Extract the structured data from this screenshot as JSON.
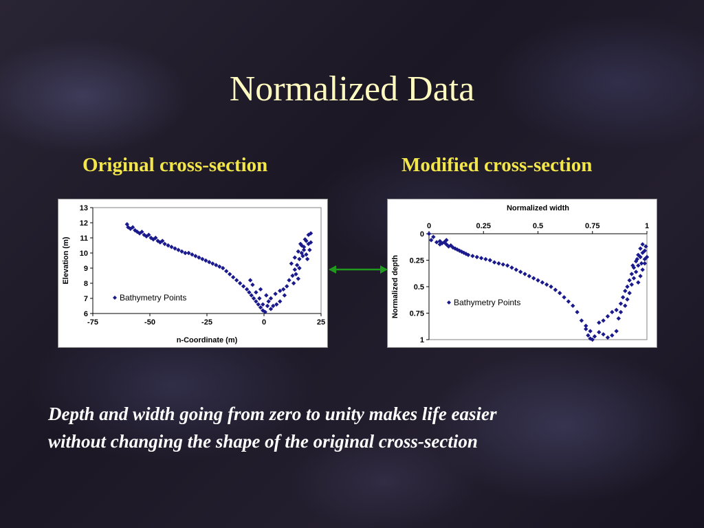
{
  "slide": {
    "title": "Normalized Data",
    "left_heading": "Original cross-section",
    "right_heading": "Modified cross-section",
    "caption_line1": "Depth and width going from zero to unity makes life easier",
    "caption_line2": "without changing the shape of the original cross-section"
  },
  "colors": {
    "point": "#1a1a8c",
    "arrow": "#1f9a1f",
    "heading": "#f2e64a",
    "title": "#fffbc0"
  },
  "chart_data": [
    {
      "type": "scatter",
      "xlabel": "n-Coordinate (m)",
      "ylabel": "Elevation (m)",
      "xlim": [
        -75,
        25
      ],
      "ylim": [
        6,
        13
      ],
      "xticks": [
        -75,
        -50,
        -25,
        0,
        25
      ],
      "yticks": [
        6,
        7,
        8,
        9,
        10,
        11,
        12,
        13
      ],
      "legend": "left-center",
      "grid": false,
      "series": [
        {
          "name": "Bathymetry Points",
          "points": [
            [
              -60,
              11.9
            ],
            [
              -59.5,
              11.7
            ],
            [
              -58.5,
              11.6
            ],
            [
              -57.5,
              11.7
            ],
            [
              -56.5,
              11.5
            ],
            [
              -55.5,
              11.4
            ],
            [
              -54.5,
              11.3
            ],
            [
              -53.5,
              11.4
            ],
            [
              -52.5,
              11.2
            ],
            [
              -51.5,
              11.1
            ],
            [
              -50.5,
              11.2
            ],
            [
              -49.5,
              11.0
            ],
            [
              -48.5,
              10.9
            ],
            [
              -47.5,
              11.0
            ],
            [
              -46.5,
              10.8
            ],
            [
              -45.5,
              10.7
            ],
            [
              -44.5,
              10.8
            ],
            [
              -43.5,
              10.6
            ],
            [
              -42,
              10.5
            ],
            [
              -40.5,
              10.4
            ],
            [
              -39,
              10.3
            ],
            [
              -37.5,
              10.2
            ],
            [
              -36,
              10.1
            ],
            [
              -34.5,
              10.0
            ],
            [
              -33,
              10.0
            ],
            [
              -31.5,
              9.9
            ],
            [
              -30,
              9.8
            ],
            [
              -28.5,
              9.7
            ],
            [
              -27,
              9.6
            ],
            [
              -25.5,
              9.5
            ],
            [
              -24,
              9.4
            ],
            [
              -22.5,
              9.3
            ],
            [
              -21,
              9.2
            ],
            [
              -19.5,
              9.1
            ],
            [
              -18,
              9.0
            ],
            [
              -16.5,
              8.8
            ],
            [
              -15,
              8.6
            ],
            [
              -13.5,
              8.4
            ],
            [
              -12,
              8.2
            ],
            [
              -10.5,
              8.0
            ],
            [
              -9,
              7.8
            ],
            [
              -7.5,
              7.6
            ],
            [
              -6.5,
              7.4
            ],
            [
              -5.5,
              7.2
            ],
            [
              -4.5,
              7.0
            ],
            [
              -3.5,
              6.8
            ],
            [
              -2.5,
              6.6
            ],
            [
              -1.5,
              6.4
            ],
            [
              -0.5,
              6.2
            ],
            [
              0.5,
              6.1
            ],
            [
              -6,
              8.2
            ],
            [
              -5,
              7.9
            ],
            [
              -3.5,
              7.4
            ],
            [
              -2,
              7.0
            ],
            [
              -0.5,
              6.6
            ],
            [
              1.5,
              6.5
            ],
            [
              3,
              6.3
            ],
            [
              4,
              6.5
            ],
            [
              5.5,
              6.6
            ],
            [
              3,
              7.0
            ],
            [
              5,
              7.3
            ],
            [
              7,
              7.5
            ],
            [
              8.5,
              7.6
            ],
            [
              10,
              7.8
            ],
            [
              11,
              8.2
            ],
            [
              12.5,
              8.5
            ],
            [
              13.5,
              8.9
            ],
            [
              14.5,
              9.2
            ],
            [
              15.5,
              9.6
            ],
            [
              16.5,
              10.0
            ],
            [
              17.5,
              10.4
            ],
            [
              18.5,
              10.8
            ],
            [
              19.5,
              11.2
            ],
            [
              20.5,
              11.3
            ],
            [
              12,
              9.3
            ],
            [
              13.5,
              9.7
            ],
            [
              15,
              10.1
            ],
            [
              16.5,
              10.5
            ],
            [
              18,
              10.9
            ],
            [
              19.5,
              10.6
            ],
            [
              20,
              10.2
            ],
            [
              17,
              9.8
            ],
            [
              15.5,
              9.0
            ],
            [
              14,
              8.6
            ],
            [
              18.5,
              9.9
            ],
            [
              20.5,
              10.7
            ],
            [
              16,
              10.6
            ],
            [
              17.5,
              10.2
            ],
            [
              19,
              9.6
            ],
            [
              15,
              8.3
            ],
            [
              13,
              8.0
            ],
            [
              9,
              7.2
            ],
            [
              7,
              6.8
            ],
            [
              2,
              6.8
            ],
            [
              1,
              7.2
            ],
            [
              -1.5,
              7.6
            ]
          ]
        }
      ]
    },
    {
      "type": "scatter",
      "xlabel": "Normalized width",
      "ylabel": "Normalized depth",
      "xlim": [
        0,
        1
      ],
      "ylim": [
        0,
        1
      ],
      "y_inverted": true,
      "x_axis_position": "top",
      "xticks": [
        0,
        0.25,
        0.5,
        0.75,
        1
      ],
      "yticks": [
        0,
        0.25,
        0.5,
        0.75,
        1
      ],
      "legend": "right-center",
      "grid": false,
      "series": [
        {
          "name": "Bathymetry Points",
          "points": [
            [
              0.0,
              0.0
            ],
            [
              0.01,
              0.06
            ],
            [
              0.02,
              0.03
            ],
            [
              0.035,
              0.08
            ],
            [
              0.05,
              0.07
            ],
            [
              0.06,
              0.09
            ],
            [
              0.07,
              0.08
            ],
            [
              0.08,
              0.1
            ],
            [
              0.09,
              0.12
            ],
            [
              0.1,
              0.11
            ],
            [
              0.11,
              0.13
            ],
            [
              0.12,
              0.14
            ],
            [
              0.13,
              0.15
            ],
            [
              0.14,
              0.16
            ],
            [
              0.15,
              0.17
            ],
            [
              0.16,
              0.18
            ],
            [
              0.17,
              0.19
            ],
            [
              0.18,
              0.2
            ],
            [
              0.2,
              0.21
            ],
            [
              0.22,
              0.22
            ],
            [
              0.24,
              0.23
            ],
            [
              0.26,
              0.24
            ],
            [
              0.28,
              0.25
            ],
            [
              0.3,
              0.27
            ],
            [
              0.32,
              0.28
            ],
            [
              0.34,
              0.29
            ],
            [
              0.36,
              0.3
            ],
            [
              0.38,
              0.32
            ],
            [
              0.4,
              0.34
            ],
            [
              0.42,
              0.36
            ],
            [
              0.44,
              0.38
            ],
            [
              0.46,
              0.4
            ],
            [
              0.48,
              0.42
            ],
            [
              0.5,
              0.44
            ],
            [
              0.52,
              0.46
            ],
            [
              0.54,
              0.48
            ],
            [
              0.56,
              0.5
            ],
            [
              0.58,
              0.53
            ],
            [
              0.6,
              0.56
            ],
            [
              0.62,
              0.6
            ],
            [
              0.64,
              0.64
            ],
            [
              0.66,
              0.68
            ],
            [
              0.68,
              0.74
            ],
            [
              0.7,
              0.82
            ],
            [
              0.72,
              0.9
            ],
            [
              0.73,
              0.96
            ],
            [
              0.74,
              0.99
            ],
            [
              0.75,
              1.0
            ],
            [
              0.72,
              0.87
            ],
            [
              0.74,
              0.92
            ],
            [
              0.76,
              0.97
            ],
            [
              0.78,
              0.93
            ],
            [
              0.8,
              0.95
            ],
            [
              0.82,
              0.98
            ],
            [
              0.84,
              0.96
            ],
            [
              0.86,
              0.92
            ],
            [
              0.78,
              0.84
            ],
            [
              0.8,
              0.82
            ],
            [
              0.82,
              0.78
            ],
            [
              0.84,
              0.74
            ],
            [
              0.86,
              0.72
            ],
            [
              0.88,
              0.66
            ],
            [
              0.89,
              0.6
            ],
            [
              0.9,
              0.54
            ],
            [
              0.91,
              0.5
            ],
            [
              0.92,
              0.44
            ],
            [
              0.93,
              0.38
            ],
            [
              0.94,
              0.32
            ],
            [
              0.95,
              0.26
            ],
            [
              0.96,
              0.2
            ],
            [
              0.97,
              0.14
            ],
            [
              0.98,
              0.1
            ],
            [
              0.99,
              0.16
            ],
            [
              1.0,
              0.22
            ],
            [
              0.99,
              0.28
            ],
            [
              0.98,
              0.34
            ],
            [
              0.97,
              0.4
            ],
            [
              0.96,
              0.46
            ],
            [
              0.95,
              0.36
            ],
            [
              0.94,
              0.42
            ],
            [
              0.93,
              0.48
            ],
            [
              0.92,
              0.56
            ],
            [
              0.91,
              0.62
            ],
            [
              0.9,
              0.68
            ],
            [
              0.88,
              0.74
            ],
            [
              0.87,
              0.8
            ],
            [
              0.96,
              0.3
            ],
            [
              0.97,
              0.22
            ],
            [
              0.98,
              0.18
            ],
            [
              0.99,
              0.24
            ],
            [
              0.995,
              0.12
            ],
            [
              0.975,
              0.28
            ],
            [
              0.955,
              0.24
            ],
            [
              0.935,
              0.3
            ],
            [
              0.05,
              0.1
            ],
            [
              0.08,
              0.06
            ]
          ]
        }
      ]
    }
  ]
}
